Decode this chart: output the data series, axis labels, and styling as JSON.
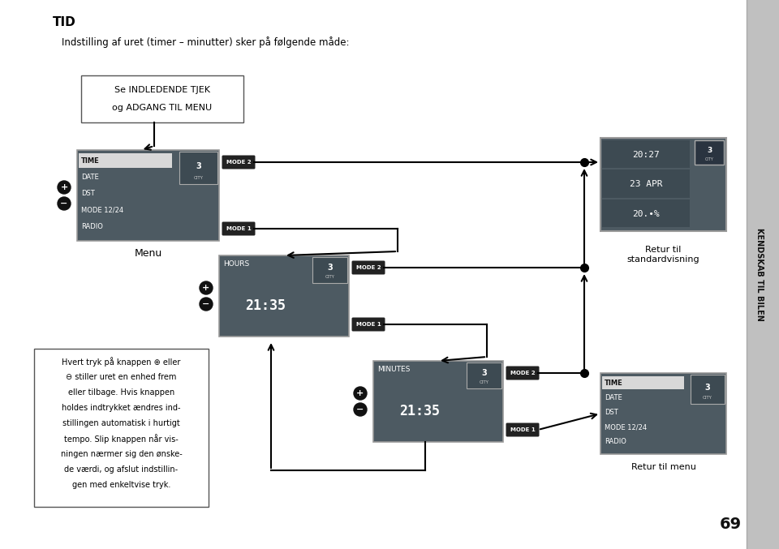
{
  "page_bg": "#ffffff",
  "sidebar_bg": "#c0c0c0",
  "title": "TID",
  "subtitle": "Indstilling af uret (timer – minutter) sker på følgende måde:",
  "page_number": "69",
  "sidebar_text": "KENDSKAB TIL BILEN",
  "menu_label": "Menu",
  "box_intro_lines": [
    "Se INDLEDENDE TJEK",
    "og ADGANG TIL MENU"
  ],
  "menu_screen_lines": [
    "TIME",
    "DATE",
    "DST",
    "MODE 12/24",
    "RADIO"
  ],
  "hours_screen_title": "HOURS",
  "hours_screen_value": "21:35",
  "minutes_screen_title": "MINUTES",
  "minutes_screen_value": "21:35",
  "std_screen_lines": [
    "20:27",
    "23 APR",
    "20.•%"
  ],
  "menu_screen2_lines": [
    "TIME",
    "DATE",
    "DST",
    "MODE 12/24",
    "RADIO"
  ],
  "retur_std": "Retur til\nstandardvisning",
  "retur_menu": "Retur til menu",
  "mode2_label": "MODE 2",
  "mode1_label": "MODE 1",
  "info_box_lines": [
    "Hvert tryk på knappen ⊕ eller",
    "⊖ stiller uret en enhed frem",
    "eller tilbage. Hvis knappen",
    "holdes indtrykket ændres ind-",
    "stillingen automatisk i hurtigt",
    "tempo. Slip knappen når vis-",
    "ningen nærmer sig den ønske-",
    "de værdi, og afslut indstillin-",
    "gen med enkeltvise tryk."
  ],
  "screen_dark": "#4d5a62",
  "screen_mid": "#3d4a52",
  "screen_text": "#ffffff",
  "mode_btn_bg": "#222222",
  "arrow_color": "#000000"
}
